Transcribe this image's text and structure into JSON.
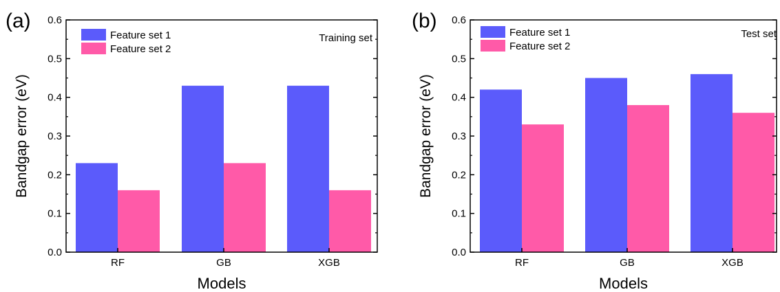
{
  "colors": {
    "series1": "#5b5bfb",
    "series2": "#ff5aa8"
  },
  "chart_data": [
    {
      "type": "bar",
      "panel_label": "(a)",
      "annotation": "Training set",
      "categories": [
        "RF",
        "GB",
        "XGB"
      ],
      "series": [
        {
          "name": "Feature set 1",
          "values": [
            0.23,
            0.43,
            0.43
          ]
        },
        {
          "name": "Feature set 2",
          "values": [
            0.16,
            0.23,
            0.16
          ]
        }
      ],
      "xlabel": "Models",
      "ylabel": "Bandgap error (eV)",
      "ylim": [
        0,
        0.6
      ],
      "yticks": [
        "0.0",
        "0.1",
        "0.2",
        "0.3",
        "0.4",
        "0.5",
        "0.6"
      ],
      "legend": "top-left",
      "grid": false
    },
    {
      "type": "bar",
      "panel_label": "(b)",
      "annotation": "Test set",
      "categories": [
        "RF",
        "GB",
        "XGB"
      ],
      "series": [
        {
          "name": "Feature set 1",
          "values": [
            0.42,
            0.45,
            0.46
          ]
        },
        {
          "name": "Feature set 2",
          "values": [
            0.33,
            0.38,
            0.36
          ]
        }
      ],
      "xlabel": "Models",
      "ylabel": "Bandgap error (eV)",
      "ylim": [
        0,
        0.6
      ],
      "yticks": [
        "0.0",
        "0.1",
        "0.2",
        "0.3",
        "0.4",
        "0.5",
        "0.6"
      ],
      "legend": "top-left",
      "grid": false
    }
  ]
}
